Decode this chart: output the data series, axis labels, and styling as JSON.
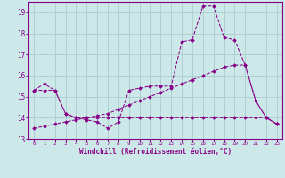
{
  "xlabel": "Windchill (Refroidissement éolien,°C)",
  "bg_color": "#cce8e8",
  "line_color": "#880088",
  "grid_color": "#aacccc",
  "series1_x": [
    0,
    1,
    2,
    3,
    4,
    5,
    6,
    7,
    8,
    9,
    10,
    11,
    12,
    13,
    14,
    15,
    16,
    17,
    18,
    19,
    20,
    21,
    22,
    23
  ],
  "series1_y": [
    15.3,
    15.6,
    15.3,
    14.2,
    14.0,
    13.9,
    13.8,
    13.5,
    13.8,
    15.3,
    15.4,
    15.5,
    15.5,
    15.5,
    17.6,
    17.7,
    19.3,
    19.3,
    17.8,
    17.7,
    16.5,
    14.8,
    14.0,
    13.7
  ],
  "series2_x": [
    0,
    1,
    2,
    3,
    4,
    5,
    6,
    7,
    8,
    9,
    10,
    11,
    12,
    13,
    14,
    15,
    16,
    17,
    18,
    19,
    20,
    21,
    22,
    23
  ],
  "series2_y": [
    15.3,
    15.3,
    15.3,
    14.2,
    14.0,
    14.0,
    14.0,
    14.0,
    14.0,
    14.0,
    14.0,
    14.0,
    14.0,
    14.0,
    14.0,
    14.0,
    14.0,
    14.0,
    14.0,
    14.0,
    14.0,
    14.0,
    14.0,
    13.7
  ],
  "series3_x": [
    0,
    1,
    2,
    3,
    4,
    5,
    6,
    7,
    8,
    9,
    10,
    11,
    12,
    13,
    14,
    15,
    16,
    17,
    18,
    19,
    20,
    21,
    22,
    23
  ],
  "series3_y": [
    13.5,
    13.6,
    13.7,
    13.8,
    13.9,
    14.0,
    14.1,
    14.2,
    14.4,
    14.6,
    14.8,
    15.0,
    15.2,
    15.4,
    15.6,
    15.8,
    16.0,
    16.2,
    16.4,
    16.5,
    16.5,
    14.8,
    14.0,
    13.7
  ],
  "ylim": [
    13.0,
    19.5
  ],
  "xlim": [
    -0.5,
    23.5
  ],
  "yticks": [
    13,
    14,
    15,
    16,
    17,
    18,
    19
  ],
  "xticks": [
    0,
    1,
    2,
    3,
    4,
    5,
    6,
    7,
    8,
    9,
    10,
    11,
    12,
    13,
    14,
    15,
    16,
    17,
    18,
    19,
    20,
    21,
    22,
    23
  ]
}
